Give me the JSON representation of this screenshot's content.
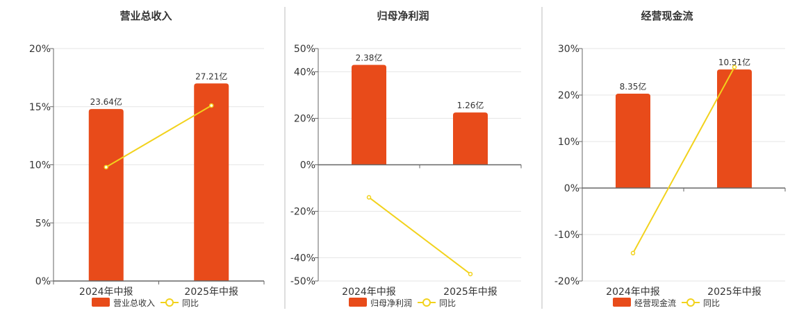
{
  "colors": {
    "bar": "#e84b1a",
    "line": "#f2d21c",
    "axis": "#666666",
    "grid": "#e6e6e6",
    "divider": "#bbbbbb",
    "text": "#333333"
  },
  "legend": {
    "yoy_label": "同比"
  },
  "chart_data": [
    {
      "type": "bar",
      "title": "营业总收入",
      "categories": [
        "2024年中报",
        "2025年中报"
      ],
      "bar_values": [
        14.8,
        17.0
      ],
      "bar_labels": [
        "23.64亿",
        "27.21亿"
      ],
      "line_values": [
        9.8,
        15.1
      ],
      "ylim": [
        0,
        20
      ],
      "yticks": [
        0,
        5,
        10,
        15,
        20
      ],
      "ytick_labels": [
        "0%",
        "5%",
        "10%",
        "15%",
        "20%"
      ],
      "series": [
        {
          "name": "营业总收入",
          "kind": "bar"
        },
        {
          "name": "同比",
          "kind": "line"
        }
      ]
    },
    {
      "type": "bar",
      "title": "归母净利润",
      "categories": [
        "2024年中报",
        "2025年中报"
      ],
      "bar_values": [
        43,
        22.5
      ],
      "bar_labels": [
        "2.38亿",
        "1.26亿"
      ],
      "line_values": [
        -14,
        -47
      ],
      "ylim": [
        -50,
        50
      ],
      "yticks": [
        -50,
        -40,
        -20,
        0,
        20,
        40,
        50
      ],
      "ytick_labels": [
        "-50%",
        "-40%",
        "-20%",
        "0%",
        "20%",
        "40%",
        "50%"
      ],
      "series": [
        {
          "name": "归母净利润",
          "kind": "bar"
        },
        {
          "name": "同比",
          "kind": "line"
        }
      ]
    },
    {
      "type": "bar",
      "title": "经营现金流",
      "categories": [
        "2024年中报",
        "2025年中报"
      ],
      "bar_values": [
        20.3,
        25.5
      ],
      "bar_labels": [
        "8.35亿",
        "10.51亿"
      ],
      "line_values": [
        -14,
        26
      ],
      "ylim": [
        -20,
        30
      ],
      "yticks": [
        -20,
        -10,
        0,
        10,
        20,
        30
      ],
      "ytick_labels": [
        "-20%",
        "-10%",
        "0%",
        "10%",
        "20%",
        "30%"
      ],
      "series": [
        {
          "name": "经营现金流",
          "kind": "bar"
        },
        {
          "name": "同比",
          "kind": "line"
        }
      ]
    }
  ]
}
